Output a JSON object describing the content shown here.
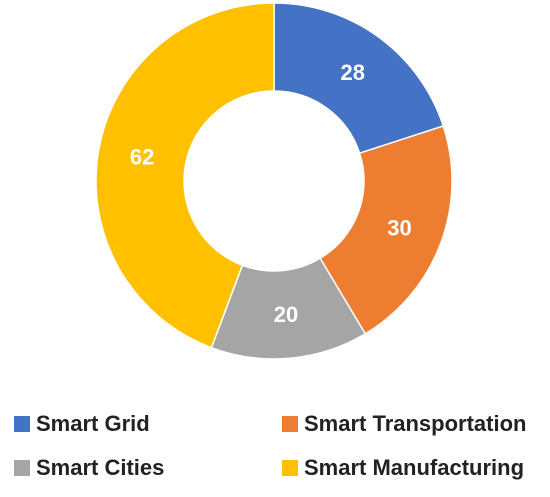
{
  "chart_data": {
    "type": "pie",
    "donut": true,
    "categories": [
      "Smart Grid",
      "Smart Transportation",
      "Smart Cities",
      "Smart Manufacturing"
    ],
    "values": [
      28,
      30,
      20,
      62
    ],
    "data_labels": [
      "28",
      "30",
      "20",
      "62"
    ],
    "colors": [
      "#4472C4",
      "#ED7D31",
      "#A5A5A5",
      "#FFC000"
    ],
    "start_angle_deg": 0,
    "direction": "clockwise",
    "legend_position": "bottom",
    "title": ""
  }
}
